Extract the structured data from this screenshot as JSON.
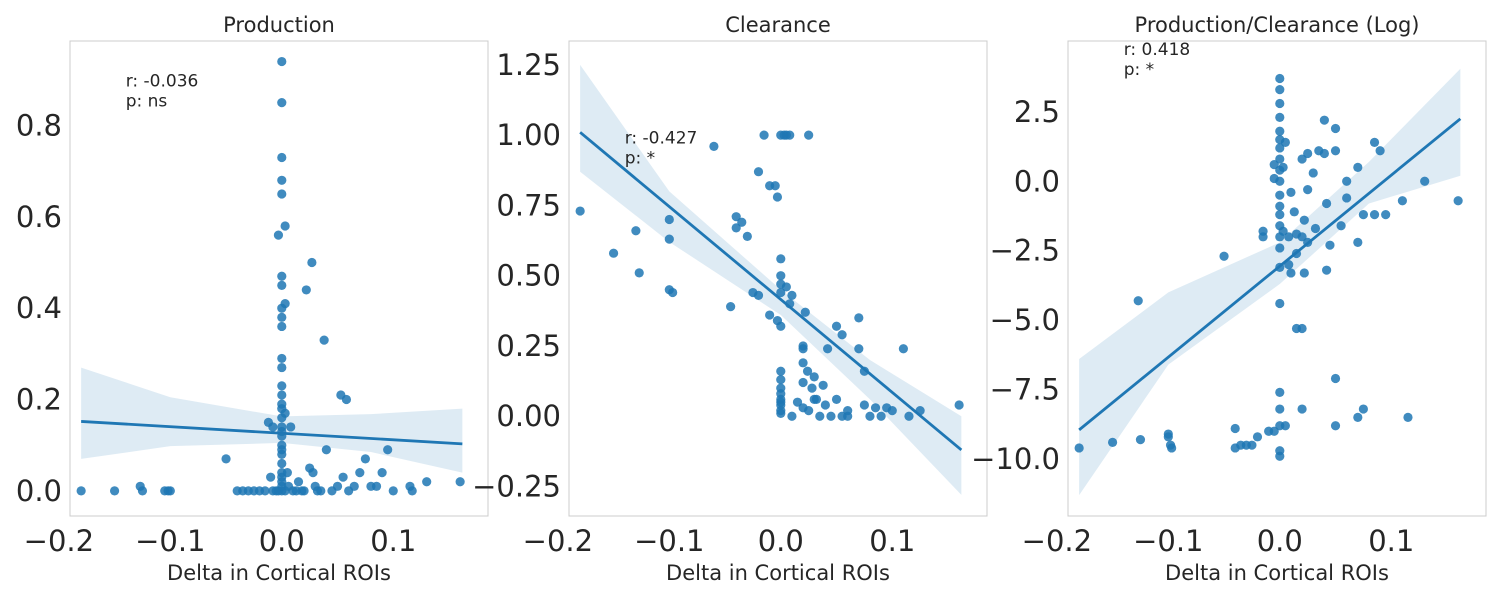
{
  "chart_data": [
    {
      "type": "scatter",
      "title": "Production",
      "xlabel": "Delta in Cortical ROIs",
      "ylabel": "",
      "xlim": [
        -0.19,
        0.185
      ],
      "ylim": [
        -0.055,
        0.985
      ],
      "xticks": [
        -0.2,
        -0.1,
        0.0,
        0.1
      ],
      "xtick_labels": [
        "−0.2",
        "−0.1",
        "0.0",
        "0.1"
      ],
      "yticks": [
        0.0,
        0.2,
        0.4,
        0.6,
        0.8
      ],
      "ytick_labels": [
        "0.0",
        "0.2",
        "0.4",
        "0.6",
        "0.8"
      ],
      "grid": false,
      "annotation": [
        "r: -0.036",
        "p: ns"
      ],
      "annotation_pos": [
        -0.14,
        0.885
      ],
      "fit_line": [
        [
          -0.18,
          0.152
        ],
        [
          0.162,
          0.103
        ]
      ],
      "ci_upper": [
        [
          -0.18,
          0.27
        ],
        [
          -0.1,
          0.205
        ],
        [
          0.0,
          0.163
        ],
        [
          0.08,
          0.168
        ],
        [
          0.162,
          0.18
        ]
      ],
      "ci_lower": [
        [
          -0.18,
          0.07
        ],
        [
          -0.1,
          0.098
        ],
        [
          0.0,
          0.105
        ],
        [
          0.08,
          0.085
        ],
        [
          0.162,
          0.04
        ]
      ],
      "points": [
        [
          -0.18,
          0.0
        ],
        [
          -0.15,
          0.0
        ],
        [
          -0.127,
          0.01
        ],
        [
          -0.125,
          0.0
        ],
        [
          -0.105,
          0.0
        ],
        [
          -0.102,
          0.0
        ],
        [
          -0.1,
          0.0
        ],
        [
          -0.05,
          0.07
        ],
        [
          -0.04,
          0.0
        ],
        [
          -0.035,
          0.0
        ],
        [
          -0.03,
          0.0
        ],
        [
          -0.025,
          0.0
        ],
        [
          -0.02,
          0.0
        ],
        [
          -0.015,
          0.0
        ],
        [
          -0.01,
          0.03
        ],
        [
          -0.008,
          0.0
        ],
        [
          -0.005,
          0.0
        ],
        [
          -0.003,
          0.0
        ],
        [
          0.0,
          0.94
        ],
        [
          0.0,
          0.85
        ],
        [
          0.0,
          0.73
        ],
        [
          0.0,
          0.68
        ],
        [
          0.0,
          0.65
        ],
        [
          0.003,
          0.58
        ],
        [
          -0.003,
          0.56
        ],
        [
          0.0,
          0.47
        ],
        [
          0.0,
          0.45
        ],
        [
          0.003,
          0.41
        ],
        [
          0.0,
          0.4
        ],
        [
          0.0,
          0.38
        ],
        [
          0.0,
          0.36
        ],
        [
          0.0,
          0.29
        ],
        [
          0.0,
          0.27
        ],
        [
          0.0,
          0.23
        ],
        [
          0.0,
          0.21
        ],
        [
          0.0,
          0.19
        ],
        [
          0.0,
          0.18
        ],
        [
          0.003,
          0.17
        ],
        [
          0.0,
          0.16
        ],
        [
          -0.012,
          0.15
        ],
        [
          -0.008,
          0.14
        ],
        [
          0.0,
          0.14
        ],
        [
          0.008,
          0.14
        ],
        [
          0.0,
          0.13
        ],
        [
          0.0,
          0.12
        ],
        [
          0.0,
          0.1
        ],
        [
          0.0,
          0.09
        ],
        [
          0.0,
          0.08
        ],
        [
          0.0,
          0.06
        ],
        [
          0.0,
          0.04
        ],
        [
          0.005,
          0.04
        ],
        [
          0.0,
          0.03
        ],
        [
          0.0,
          0.02
        ],
        [
          0.0,
          0.01
        ],
        [
          0.0,
          0.0
        ],
        [
          0.003,
          0.0
        ],
        [
          0.006,
          0.01
        ],
        [
          0.01,
          0.0
        ],
        [
          0.013,
          0.0
        ],
        [
          0.015,
          0.02
        ],
        [
          0.018,
          0.0
        ],
        [
          0.02,
          0.0
        ],
        [
          0.022,
          0.44
        ],
        [
          0.025,
          0.05
        ],
        [
          0.027,
          0.5
        ],
        [
          0.028,
          0.04
        ],
        [
          0.03,
          0.01
        ],
        [
          0.032,
          0.0
        ],
        [
          0.035,
          0.0
        ],
        [
          0.038,
          0.33
        ],
        [
          0.04,
          0.09
        ],
        [
          0.045,
          0.0
        ],
        [
          0.05,
          0.01
        ],
        [
          0.053,
          0.21
        ],
        [
          0.055,
          0.03
        ],
        [
          0.058,
          0.2
        ],
        [
          0.06,
          0.0
        ],
        [
          0.065,
          0.01
        ],
        [
          0.07,
          0.04
        ],
        [
          0.075,
          0.07
        ],
        [
          0.08,
          0.01
        ],
        [
          0.085,
          0.01
        ],
        [
          0.09,
          0.04
        ],
        [
          0.095,
          0.09
        ],
        [
          0.1,
          0.0
        ],
        [
          0.115,
          0.01
        ],
        [
          0.117,
          0.0
        ],
        [
          0.13,
          0.02
        ],
        [
          0.16,
          0.02
        ]
      ]
    },
    {
      "type": "scatter",
      "title": "Clearance",
      "xlabel": "Delta in Cortical ROIs",
      "ylabel": "",
      "xlim": [
        -0.19,
        0.185
      ],
      "ylim": [
        -0.355,
        1.335
      ],
      "xticks": [
        -0.2,
        -0.1,
        0.0,
        0.1
      ],
      "xtick_labels": [
        "−0.2",
        "−0.1",
        "0.0",
        "0.1"
      ],
      "yticks": [
        -0.25,
        0.0,
        0.25,
        0.5,
        0.75,
        1.0,
        1.25
      ],
      "ytick_labels": [
        "−0.25",
        "0.00",
        "0.25",
        "0.50",
        "0.75",
        "1.00",
        "1.25"
      ],
      "grid": false,
      "annotation": [
        "r: -0.427",
        "p: *"
      ],
      "annotation_pos": [
        -0.14,
        0.97
      ],
      "fit_line": [
        [
          -0.18,
          1.01
        ],
        [
          0.162,
          -0.12
        ]
      ],
      "ci_upper": [
        [
          -0.18,
          1.25
        ],
        [
          -0.1,
          0.8
        ],
        [
          0.0,
          0.45
        ],
        [
          0.08,
          0.2
        ],
        [
          0.162,
          0.0
        ]
      ],
      "ci_lower": [
        [
          -0.18,
          0.87
        ],
        [
          -0.1,
          0.62
        ],
        [
          0.0,
          0.36
        ],
        [
          0.08,
          0.06
        ],
        [
          0.162,
          -0.28
        ]
      ],
      "points": [
        [
          -0.18,
          0.73
        ],
        [
          -0.15,
          0.58
        ],
        [
          -0.13,
          0.66
        ],
        [
          -0.127,
          0.51
        ],
        [
          -0.1,
          0.7
        ],
        [
          -0.1,
          0.63
        ],
        [
          -0.1,
          0.45
        ],
        [
          -0.097,
          0.44
        ],
        [
          -0.06,
          0.96
        ],
        [
          -0.045,
          0.39
        ],
        [
          -0.04,
          0.71
        ],
        [
          -0.04,
          0.67
        ],
        [
          -0.035,
          0.69
        ],
        [
          -0.03,
          0.64
        ],
        [
          -0.025,
          0.44
        ],
        [
          -0.02,
          0.87
        ],
        [
          -0.02,
          0.43
        ],
        [
          -0.015,
          1.0
        ],
        [
          -0.01,
          0.82
        ],
        [
          -0.01,
          0.36
        ],
        [
          -0.005,
          0.82
        ],
        [
          -0.003,
          0.78
        ],
        [
          -0.003,
          0.34
        ],
        [
          0.0,
          1.0
        ],
        [
          0.003,
          1.0
        ],
        [
          0.005,
          1.0
        ],
        [
          0.008,
          1.0
        ],
        [
          0.025,
          1.0
        ],
        [
          0.0,
          0.56
        ],
        [
          0.0,
          0.5
        ],
        [
          0.0,
          0.47
        ],
        [
          0.0,
          0.44
        ],
        [
          0.0,
          0.32
        ],
        [
          0.0,
          0.16
        ],
        [
          0.0,
          0.13
        ],
        [
          0.0,
          0.1
        ],
        [
          0.0,
          0.08
        ],
        [
          0.0,
          0.06
        ],
        [
          0.0,
          0.05
        ],
        [
          0.0,
          0.04
        ],
        [
          0.0,
          0.02
        ],
        [
          0.0,
          0.01
        ],
        [
          0.005,
          0.46
        ],
        [
          0.008,
          0.4
        ],
        [
          0.01,
          0.43
        ],
        [
          0.01,
          0.0
        ],
        [
          0.015,
          0.05
        ],
        [
          0.02,
          0.25
        ],
        [
          0.02,
          0.24
        ],
        [
          0.02,
          0.19
        ],
        [
          0.02,
          0.12
        ],
        [
          0.02,
          0.03
        ],
        [
          0.022,
          0.37
        ],
        [
          0.024,
          0.16
        ],
        [
          0.025,
          0.02
        ],
        [
          0.028,
          0.1
        ],
        [
          0.03,
          0.14
        ],
        [
          0.03,
          0.06
        ],
        [
          0.032,
          0.06
        ],
        [
          0.035,
          0.0
        ],
        [
          0.038,
          0.11
        ],
        [
          0.04,
          0.04
        ],
        [
          0.042,
          0.24
        ],
        [
          0.045,
          0.0
        ],
        [
          0.05,
          0.32
        ],
        [
          0.05,
          0.06
        ],
        [
          0.055,
          0.29
        ],
        [
          0.055,
          0.0
        ],
        [
          0.06,
          0.0
        ],
        [
          0.06,
          0.02
        ],
        [
          0.07,
          0.35
        ],
        [
          0.07,
          0.24
        ],
        [
          0.075,
          0.16
        ],
        [
          0.075,
          0.04
        ],
        [
          0.08,
          0.0
        ],
        [
          0.085,
          0.03
        ],
        [
          0.09,
          0.0
        ],
        [
          0.095,
          0.03
        ],
        [
          0.1,
          0.02
        ],
        [
          0.11,
          0.24
        ],
        [
          0.115,
          0.0
        ],
        [
          0.125,
          0.02
        ],
        [
          0.16,
          0.04
        ]
      ]
    },
    {
      "type": "scatter",
      "title": "Production/Clearance (Log)",
      "xlabel": "Delta in Cortical ROIs",
      "ylabel": "",
      "xlim": [
        -0.19,
        0.185
      ],
      "ylim": [
        -12.05,
        5.05
      ],
      "xticks": [
        -0.2,
        -0.1,
        0.0,
        0.1
      ],
      "xtick_labels": [
        "−0.2",
        "−0.1",
        "0.0",
        "0.1"
      ],
      "yticks": [
        -10.0,
        -7.5,
        -5.0,
        -2.5,
        0.0,
        2.5
      ],
      "ytick_labels": [
        "−10.0",
        "−7.5",
        "−5.0",
        "−2.5",
        "0.0",
        "2.5"
      ],
      "grid": false,
      "annotation": [
        "r: 0.418",
        "p: *"
      ],
      "annotation_pos": [
        -0.14,
        4.55
      ],
      "fit_line": [
        [
          -0.18,
          -8.95
        ],
        [
          0.162,
          2.25
        ]
      ],
      "ci_upper": [
        [
          -0.18,
          -6.4
        ],
        [
          -0.1,
          -4.0
        ],
        [
          0.0,
          -2.2
        ],
        [
          0.08,
          0.7
        ],
        [
          0.162,
          4.05
        ]
      ],
      "ci_lower": [
        [
          -0.18,
          -11.3
        ],
        [
          -0.1,
          -6.6
        ],
        [
          0.0,
          -3.7
        ],
        [
          0.08,
          -0.8
        ],
        [
          0.162,
          0.2
        ]
      ],
      "points": [
        [
          -0.18,
          -9.6
        ],
        [
          -0.15,
          -9.4
        ],
        [
          -0.127,
          -4.3
        ],
        [
          -0.125,
          -9.3
        ],
        [
          -0.1,
          -9.2
        ],
        [
          -0.1,
          -9.1
        ],
        [
          -0.098,
          -9.5
        ],
        [
          -0.097,
          -9.6
        ],
        [
          -0.05,
          -2.7
        ],
        [
          -0.04,
          -8.9
        ],
        [
          -0.04,
          -9.6
        ],
        [
          -0.035,
          -9.5
        ],
        [
          -0.03,
          -9.5
        ],
        [
          -0.025,
          -9.5
        ],
        [
          -0.02,
          -9.2
        ],
        [
          -0.015,
          -1.8
        ],
        [
          -0.015,
          -2.0
        ],
        [
          -0.01,
          -9.0
        ],
        [
          -0.005,
          -9.0
        ],
        [
          -0.005,
          0.6
        ],
        [
          -0.005,
          0.1
        ],
        [
          0.0,
          3.7
        ],
        [
          0.0,
          3.3
        ],
        [
          0.0,
          2.8
        ],
        [
          0.0,
          2.3
        ],
        [
          0.0,
          1.8
        ],
        [
          0.0,
          1.5
        ],
        [
          0.0,
          1.2
        ],
        [
          0.0,
          0.8
        ],
        [
          0.0,
          0.4
        ],
        [
          0.0,
          0.0
        ],
        [
          0.0,
          -0.5
        ],
        [
          0.0,
          -0.9
        ],
        [
          0.0,
          -1.2
        ],
        [
          0.0,
          -1.6
        ],
        [
          0.0,
          -2.0
        ],
        [
          0.0,
          -2.4
        ],
        [
          0.0,
          -3.1
        ],
        [
          0.0,
          -4.4
        ],
        [
          0.0,
          -7.6
        ],
        [
          0.0,
          -8.2
        ],
        [
          0.0,
          -8.8
        ],
        [
          0.0,
          -9.7
        ],
        [
          0.0,
          -9.9
        ],
        [
          0.003,
          0.5
        ],
        [
          0.003,
          -1.8
        ],
        [
          0.005,
          1.4
        ],
        [
          0.005,
          -8.8
        ],
        [
          0.008,
          -2.0
        ],
        [
          0.008,
          -3.0
        ],
        [
          0.01,
          -0.4
        ],
        [
          0.01,
          -3.3
        ],
        [
          0.013,
          -1.1
        ],
        [
          0.015,
          -1.9
        ],
        [
          0.015,
          -2.6
        ],
        [
          0.015,
          -5.3
        ],
        [
          0.02,
          0.8
        ],
        [
          0.02,
          -2.0
        ],
        [
          0.02,
          -8.2
        ],
        [
          0.02,
          -5.3
        ],
        [
          0.022,
          -1.4
        ],
        [
          0.022,
          -3.3
        ],
        [
          0.025,
          1.0
        ],
        [
          0.025,
          -0.3
        ],
        [
          0.025,
          -2.2
        ],
        [
          0.03,
          0.3
        ],
        [
          0.032,
          -1.7
        ],
        [
          0.035,
          1.1
        ],
        [
          0.04,
          2.2
        ],
        [
          0.04,
          1.0
        ],
        [
          0.042,
          -0.8
        ],
        [
          0.042,
          -3.2
        ],
        [
          0.045,
          -2.3
        ],
        [
          0.05,
          1.9
        ],
        [
          0.05,
          1.1
        ],
        [
          0.05,
          -7.1
        ],
        [
          0.05,
          -8.8
        ],
        [
          0.055,
          -1.6
        ],
        [
          0.06,
          -0.6
        ],
        [
          0.06,
          0.0
        ],
        [
          0.07,
          0.5
        ],
        [
          0.07,
          -2.2
        ],
        [
          0.07,
          -8.5
        ],
        [
          0.075,
          -1.2
        ],
        [
          0.075,
          -8.2
        ],
        [
          0.085,
          1.4
        ],
        [
          0.085,
          -1.2
        ],
        [
          0.09,
          1.1
        ],
        [
          0.095,
          -1.2
        ],
        [
          0.11,
          -0.7
        ],
        [
          0.115,
          -8.5
        ],
        [
          0.13,
          0.0
        ],
        [
          0.16,
          -0.7
        ]
      ]
    }
  ]
}
